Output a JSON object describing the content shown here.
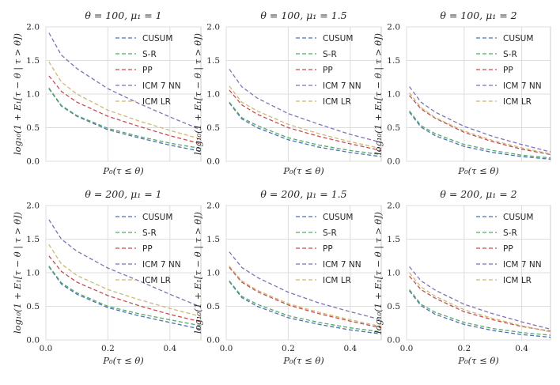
{
  "chart_data": [
    {
      "type": "line",
      "title": "θ = 100, μ₁ = 1",
      "xlabel": "P₀(τ ≤ θ)",
      "ylabel": "log₁₀(1 + E₁[τ − θ | τ > θ])",
      "xlim": [
        0,
        0.5
      ],
      "ylim": [
        0,
        2.0
      ],
      "x": [
        0.01,
        0.05,
        0.1,
        0.2,
        0.3,
        0.4,
        0.5
      ],
      "series": [
        {
          "name": "CUSUM",
          "values": [
            1.08,
            0.82,
            0.67,
            0.47,
            0.35,
            0.24,
            0.15
          ]
        },
        {
          "name": "S-R",
          "values": [
            1.09,
            0.83,
            0.68,
            0.49,
            0.37,
            0.27,
            0.19
          ]
        },
        {
          "name": "PP",
          "values": [
            1.27,
            1.04,
            0.88,
            0.67,
            0.52,
            0.38,
            0.26
          ]
        },
        {
          "name": "ICM 7 NN",
          "values": [
            1.91,
            1.58,
            1.38,
            1.08,
            0.86,
            0.66,
            0.47
          ]
        },
        {
          "name": "ICM LR",
          "values": [
            1.48,
            1.18,
            1.0,
            0.76,
            0.6,
            0.46,
            0.33
          ]
        }
      ]
    },
    {
      "type": "line",
      "title": "θ = 100, μ₁ = 1.5",
      "xlabel": "P₀(τ ≤ θ)",
      "ylabel": "log₁₀(1 + E₁[τ − θ | τ > θ])",
      "xlim": [
        0,
        0.5
      ],
      "ylim": [
        0,
        2.0
      ],
      "x": [
        0.01,
        0.05,
        0.1,
        0.2,
        0.3,
        0.4,
        0.5
      ],
      "series": [
        {
          "name": "CUSUM",
          "values": [
            0.87,
            0.63,
            0.5,
            0.32,
            0.21,
            0.13,
            0.07
          ]
        },
        {
          "name": "S-R",
          "values": [
            0.88,
            0.65,
            0.53,
            0.35,
            0.24,
            0.16,
            0.1
          ]
        },
        {
          "name": "PP",
          "values": [
            1.06,
            0.84,
            0.7,
            0.5,
            0.37,
            0.26,
            0.16
          ]
        },
        {
          "name": "ICM 7 NN",
          "values": [
            1.37,
            1.11,
            0.94,
            0.71,
            0.55,
            0.4,
            0.28
          ]
        },
        {
          "name": "ICM LR",
          "values": [
            1.12,
            0.88,
            0.75,
            0.55,
            0.41,
            0.29,
            0.19
          ]
        }
      ]
    },
    {
      "type": "line",
      "title": "θ = 100, μ₁ = 2",
      "xlabel": "P₀(τ ≤ θ)",
      "ylabel": "log₁₀(1 + E₁[τ − θ | τ > θ])",
      "xlim": [
        0,
        0.5
      ],
      "ylim": [
        0,
        2.0
      ],
      "x": [
        0.01,
        0.05,
        0.1,
        0.2,
        0.3,
        0.4,
        0.5
      ],
      "series": [
        {
          "name": "CUSUM",
          "values": [
            0.73,
            0.51,
            0.38,
            0.22,
            0.13,
            0.07,
            0.03
          ]
        },
        {
          "name": "S-R",
          "values": [
            0.75,
            0.53,
            0.41,
            0.25,
            0.16,
            0.09,
            0.05
          ]
        },
        {
          "name": "PP",
          "values": [
            0.98,
            0.78,
            0.64,
            0.43,
            0.29,
            0.18,
            0.1
          ]
        },
        {
          "name": "ICM 7 NN",
          "values": [
            1.11,
            0.88,
            0.73,
            0.52,
            0.37,
            0.25,
            0.14
          ]
        },
        {
          "name": "ICM LR",
          "values": [
            1.02,
            0.8,
            0.65,
            0.45,
            0.31,
            0.2,
            0.11
          ]
        }
      ]
    },
    {
      "type": "line",
      "title": "θ = 200, μ₁ = 1",
      "xlabel": "P₀(τ ≤ θ)",
      "ylabel": "log₁₀(1 + E₁[τ − θ | τ > θ])",
      "xlim": [
        0,
        0.5
      ],
      "ylim": [
        0,
        2.0
      ],
      "x": [
        0.01,
        0.05,
        0.1,
        0.2,
        0.3,
        0.4,
        0.5
      ],
      "series": [
        {
          "name": "CUSUM",
          "values": [
            1.09,
            0.83,
            0.68,
            0.48,
            0.36,
            0.26,
            0.16
          ]
        },
        {
          "name": "S-R",
          "values": [
            1.1,
            0.85,
            0.7,
            0.5,
            0.39,
            0.3,
            0.21
          ]
        },
        {
          "name": "PP",
          "values": [
            1.25,
            1.02,
            0.86,
            0.66,
            0.51,
            0.38,
            0.27
          ]
        },
        {
          "name": "ICM 7 NN",
          "values": [
            1.79,
            1.5,
            1.32,
            1.07,
            0.88,
            0.68,
            0.49
          ]
        },
        {
          "name": "ICM LR",
          "values": [
            1.42,
            1.13,
            0.96,
            0.75,
            0.6,
            0.47,
            0.35
          ]
        }
      ]
    },
    {
      "type": "line",
      "title": "θ = 200, μ₁ = 1.5",
      "xlabel": "P₀(τ ≤ θ)",
      "ylabel": "log₁₀(1 + E₁[τ − θ | τ > θ])",
      "xlim": [
        0,
        0.5
      ],
      "ylim": [
        0,
        2.0
      ],
      "x": [
        0.01,
        0.05,
        0.1,
        0.2,
        0.3,
        0.4,
        0.5
      ],
      "series": [
        {
          "name": "CUSUM",
          "values": [
            0.87,
            0.63,
            0.5,
            0.33,
            0.23,
            0.15,
            0.09
          ]
        },
        {
          "name": "S-R",
          "values": [
            0.88,
            0.65,
            0.53,
            0.36,
            0.26,
            0.18,
            0.12
          ]
        },
        {
          "name": "PP",
          "values": [
            1.08,
            0.86,
            0.72,
            0.52,
            0.39,
            0.28,
            0.18
          ]
        },
        {
          "name": "ICM 7 NN",
          "values": [
            1.31,
            1.08,
            0.93,
            0.71,
            0.55,
            0.42,
            0.3
          ]
        },
        {
          "name": "ICM LR",
          "values": [
            1.1,
            0.88,
            0.74,
            0.54,
            0.41,
            0.3,
            0.2
          ]
        }
      ]
    },
    {
      "type": "line",
      "title": "θ = 200, μ₁ = 2",
      "xlabel": "P₀(τ ≤ θ)",
      "ylabel": "log₁₀(1 + E₁[τ − θ | τ > θ])",
      "xlim": [
        0,
        0.5
      ],
      "ylim": [
        0,
        2.0
      ],
      "x": [
        0.01,
        0.05,
        0.1,
        0.2,
        0.3,
        0.4,
        0.5
      ],
      "series": [
        {
          "name": "CUSUM",
          "values": [
            0.73,
            0.51,
            0.38,
            0.23,
            0.14,
            0.08,
            0.04
          ]
        },
        {
          "name": "S-R",
          "values": [
            0.75,
            0.53,
            0.41,
            0.26,
            0.17,
            0.11,
            0.07
          ]
        },
        {
          "name": "PP",
          "values": [
            0.95,
            0.75,
            0.62,
            0.42,
            0.3,
            0.2,
            0.13
          ]
        },
        {
          "name": "ICM 7 NN",
          "values": [
            1.09,
            0.88,
            0.74,
            0.53,
            0.39,
            0.27,
            0.16
          ]
        },
        {
          "name": "ICM LR",
          "values": [
            1.0,
            0.79,
            0.65,
            0.45,
            0.32,
            0.21,
            0.12
          ]
        }
      ]
    }
  ],
  "colors": {
    "CUSUM": "#4c72b0",
    "S-R": "#55a868",
    "PP": "#c44e52",
    "ICM 7 NN": "#8172b3",
    "ICM LR": "#ccb974",
    "grid": "#dddddd",
    "spine": "#cccccc"
  },
  "yticks": [
    "0.0",
    "0.5",
    "1.0",
    "1.5",
    "2.0"
  ],
  "xticks": [
    "0.0",
    "0.2",
    "0.4"
  ]
}
